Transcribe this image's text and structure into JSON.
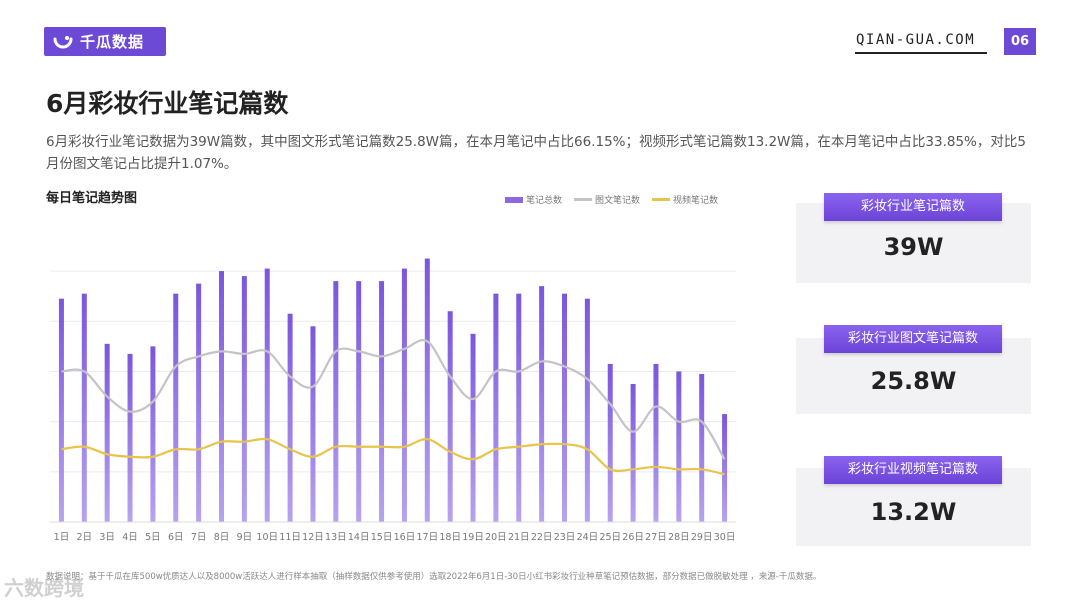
{
  "header": {
    "logo_text": "千瓜数据",
    "site": "QIAN-GUA.COM",
    "page_number": "06"
  },
  "title": "6月彩妆行业笔记篇数",
  "description": "6月彩妆行业笔记数据为39W篇数，其中图文形式笔记篇数25.8W篇，在本月笔记中占比66.15%；视频形式笔记篇数13.2W篇，在本月笔记中占比33.85%，对比5月份图文笔记占比提升1.07%。",
  "chart_title": "每日笔记趋势图",
  "cards": [
    {
      "label": "彩妆行业笔记篇数",
      "value": "39W"
    },
    {
      "label": "彩妆行业图文笔记篇数",
      "value": "25.8W"
    },
    {
      "label": "彩妆行业视频笔记篇数",
      "value": "13.2W"
    }
  ],
  "footnote": "数据说明：基于千瓜在库500w优质达人以及8000w活跃达人进行样本抽取（抽样数据仅供参考使用）选取2022年6月1日-30日小红书彩妆行业种草笔记预估数据，部分数据已做脱敏处理 ，来源-千瓜数据。",
  "watermark": "六数跨境",
  "colors": {
    "accent": "#6c4ad6",
    "bar": "#8b68e0",
    "line_image": "#c4c4c8",
    "line_video": "#e8c44a"
  },
  "chart_data": {
    "type": "bar",
    "categories": [
      "1日",
      "2日",
      "3日",
      "4日",
      "5日",
      "6日",
      "7日",
      "8日",
      "9日",
      "10日",
      "11日",
      "12日",
      "13日",
      "14日",
      "15日",
      "16日",
      "17日",
      "18日",
      "19日",
      "20日",
      "21日",
      "22日",
      "23日",
      "24日",
      "25日",
      "26日",
      "27日",
      "28日",
      "29日",
      "30日"
    ],
    "series": [
      {
        "name": "笔记总数",
        "kind": "bar",
        "values": [
          89,
          91,
          71,
          67,
          70,
          91,
          95,
          100,
          98,
          101,
          83,
          78,
          96,
          96,
          96,
          101,
          105,
          84,
          75,
          91,
          91,
          94,
          91,
          89,
          63,
          55,
          63,
          60,
          59,
          43
        ]
      },
      {
        "name": "图文笔记数",
        "kind": "line",
        "values": [
          60,
          60,
          50,
          44,
          48,
          62,
          66,
          68,
          67,
          68,
          58,
          54,
          68,
          68,
          66,
          69,
          72,
          58,
          49,
          60,
          60,
          64,
          62,
          57,
          47,
          36,
          46,
          40,
          40,
          25
        ]
      },
      {
        "name": "视频笔记数",
        "kind": "line",
        "values": [
          29,
          30,
          27,
          26,
          26,
          29,
          29,
          32,
          32,
          33,
          29,
          26,
          30,
          30,
          30,
          30,
          33,
          28,
          25,
          29,
          30,
          31,
          31,
          29,
          21,
          21,
          22,
          21,
          21,
          19
        ]
      }
    ],
    "ylim": [
      0,
      110
    ],
    "grid": true,
    "legend_position": "top-right"
  }
}
